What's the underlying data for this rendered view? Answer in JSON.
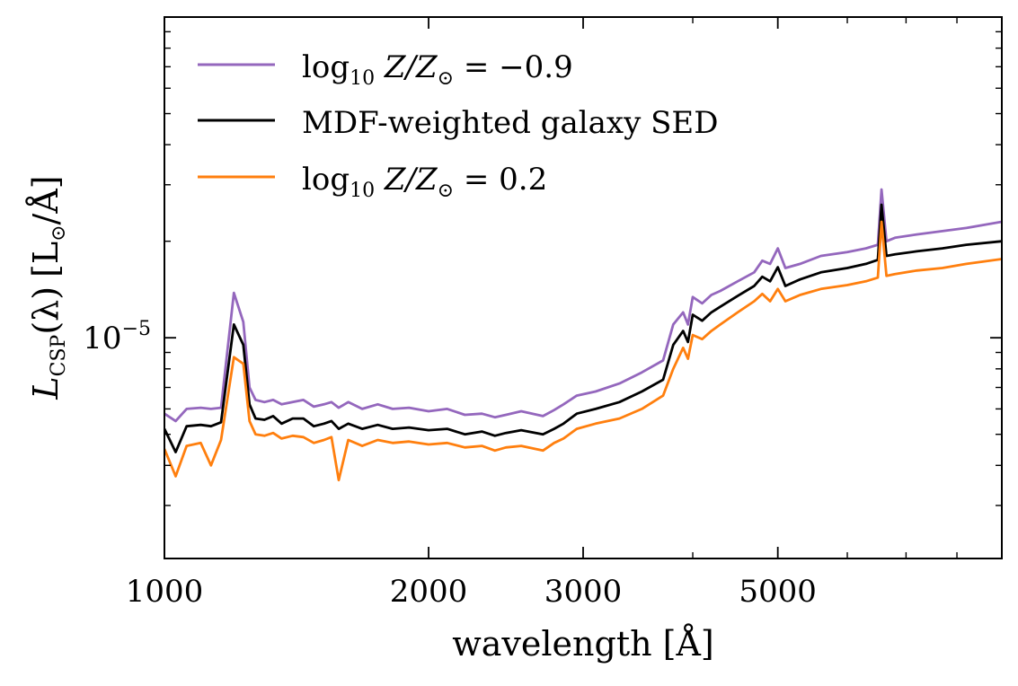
{
  "chart_data": {
    "type": "line",
    "xscale": "log",
    "yscale": "log",
    "xlim": [
      1000,
      9000
    ],
    "ylim": [
      2.05e-06,
      0.0001
    ],
    "xlabel": "wavelength [Å]",
    "ylabel": {
      "L": "L",
      "sub": "CSP",
      "lambda": "(λ)",
      "unit_open": "[L",
      "unit_sun": "⊙",
      "unit_close": "/Å]"
    },
    "xticks": [
      {
        "value": 1000,
        "label": "1000"
      },
      {
        "value": 2000,
        "label": "2000"
      },
      {
        "value": 3000,
        "label": "3000"
      },
      {
        "value": 5000,
        "label": "5000"
      }
    ],
    "yticks": [
      {
        "value": 1e-05,
        "label_base": "10",
        "label_exp": "−5"
      }
    ],
    "legend": {
      "location": "upper-left",
      "entries": [
        {
          "series_index": 0,
          "prefix": "log",
          "sub": "10",
          "mid": " Z/Z",
          "sun": "⊙",
          "suffix": " = −0.9"
        },
        {
          "series_index": 1,
          "text": "MDF-weighted galaxy SED"
        },
        {
          "series_index": 2,
          "prefix": "log",
          "sub": "10",
          "mid": " Z/Z",
          "sun": "⊙",
          "suffix": " = 0.2"
        }
      ]
    },
    "x": [
      1000,
      1030,
      1060,
      1100,
      1130,
      1160,
      1200,
      1230,
      1250,
      1270,
      1300,
      1330,
      1360,
      1400,
      1440,
      1480,
      1520,
      1550,
      1580,
      1620,
      1680,
      1750,
      1820,
      1900,
      2000,
      2100,
      2200,
      2300,
      2380,
      2450,
      2550,
      2700,
      2780,
      2850,
      2950,
      3100,
      3300,
      3500,
      3700,
      3800,
      3900,
      3950,
      4000,
      4100,
      4200,
      4300,
      4500,
      4700,
      4800,
      4900,
      5000,
      5100,
      5300,
      5600,
      6000,
      6300,
      6500,
      6563,
      6650,
      6800,
      7200,
      7700,
      8200,
      9000
    ],
    "series": [
      {
        "name": "log10 Z/Z⊙ = −0.9",
        "color": "#9467bd",
        "values": [
          5.8e-06,
          5.5e-06,
          6e-06,
          6.05e-06,
          6e-06,
          6.05e-06,
          1.38e-05,
          1.12e-05,
          7e-06,
          6.4e-06,
          6.3e-06,
          6.4e-06,
          6.2e-06,
          6.3e-06,
          6.4e-06,
          6.1e-06,
          6.2e-06,
          6.3e-06,
          6.05e-06,
          6.3e-06,
          6e-06,
          6.2e-06,
          6e-06,
          6.05e-06,
          5.9e-06,
          6e-06,
          5.75e-06,
          5.8e-06,
          5.65e-06,
          5.75e-06,
          5.9e-06,
          5.7e-06,
          5.95e-06,
          6.2e-06,
          6.6e-06,
          6.8e-06,
          7.2e-06,
          7.8e-06,
          8.5e-06,
          1.1e-05,
          1.2e-05,
          1.1e-05,
          1.34e-05,
          1.28e-05,
          1.36e-05,
          1.4e-05,
          1.5e-05,
          1.6e-05,
          1.74e-05,
          1.7e-05,
          1.9e-05,
          1.65e-05,
          1.7e-05,
          1.8e-05,
          1.85e-05,
          1.9e-05,
          1.95e-05,
          2.9e-05,
          2e-05,
          2.05e-05,
          2.1e-05,
          2.15e-05,
          2.2e-05,
          2.3e-05
        ]
      },
      {
        "name": "MDF-weighted galaxy SED",
        "color": "#000000",
        "values": [
          5.2e-06,
          4.4e-06,
          5.3e-06,
          5.35e-06,
          5.3e-06,
          5.45e-06,
          1.1e-05,
          9.5e-06,
          6.2e-06,
          5.6e-06,
          5.55e-06,
          5.7e-06,
          5.4e-06,
          5.6e-06,
          5.6e-06,
          5.3e-06,
          5.4e-06,
          5.5e-06,
          5.2e-06,
          5.4e-06,
          5.2e-06,
          5.35e-06,
          5.2e-06,
          5.25e-06,
          5.15e-06,
          5.2e-06,
          5e-06,
          5.1e-06,
          4.95e-06,
          5.05e-06,
          5.15e-06,
          5e-06,
          5.2e-06,
          5.4e-06,
          5.8e-06,
          6e-06,
          6.3e-06,
          6.8e-06,
          7.4e-06,
          9.5e-06,
          1.05e-05,
          9.7e-06,
          1.18e-05,
          1.13e-05,
          1.2e-05,
          1.25e-05,
          1.35e-05,
          1.45e-05,
          1.55e-05,
          1.5e-05,
          1.66e-05,
          1.45e-05,
          1.52e-05,
          1.6e-05,
          1.65e-05,
          1.7e-05,
          1.75e-05,
          2.6e-05,
          1.8e-05,
          1.82e-05,
          1.86e-05,
          1.9e-05,
          1.95e-05,
          2e-05
        ]
      },
      {
        "name": "log10 Z/Z⊙ = 0.2",
        "color": "#ff7f0e",
        "values": [
          4.5e-06,
          3.7e-06,
          4.6e-06,
          4.7e-06,
          4e-06,
          4.8e-06,
          8.7e-06,
          8.3e-06,
          5.5e-06,
          5e-06,
          4.95e-06,
          5.05e-06,
          4.85e-06,
          4.95e-06,
          4.9e-06,
          4.7e-06,
          4.8e-06,
          4.9e-06,
          3.6e-06,
          4.8e-06,
          4.6e-06,
          4.8e-06,
          4.7e-06,
          4.75e-06,
          4.65e-06,
          4.7e-06,
          4.55e-06,
          4.6e-06,
          4.45e-06,
          4.55e-06,
          4.6e-06,
          4.45e-06,
          4.7e-06,
          4.85e-06,
          5.2e-06,
          5.4e-06,
          5.6e-06,
          6e-06,
          6.6e-06,
          8e-06,
          9.3e-06,
          8.6e-06,
          1.02e-05,
          9.9e-06,
          1.05e-05,
          1.1e-05,
          1.2e-05,
          1.3e-05,
          1.37e-05,
          1.3e-05,
          1.42e-05,
          1.3e-05,
          1.36e-05,
          1.42e-05,
          1.46e-05,
          1.5e-05,
          1.54e-05,
          2.3e-05,
          1.56e-05,
          1.58e-05,
          1.62e-05,
          1.65e-05,
          1.7e-05,
          1.76e-05
        ]
      }
    ]
  }
}
